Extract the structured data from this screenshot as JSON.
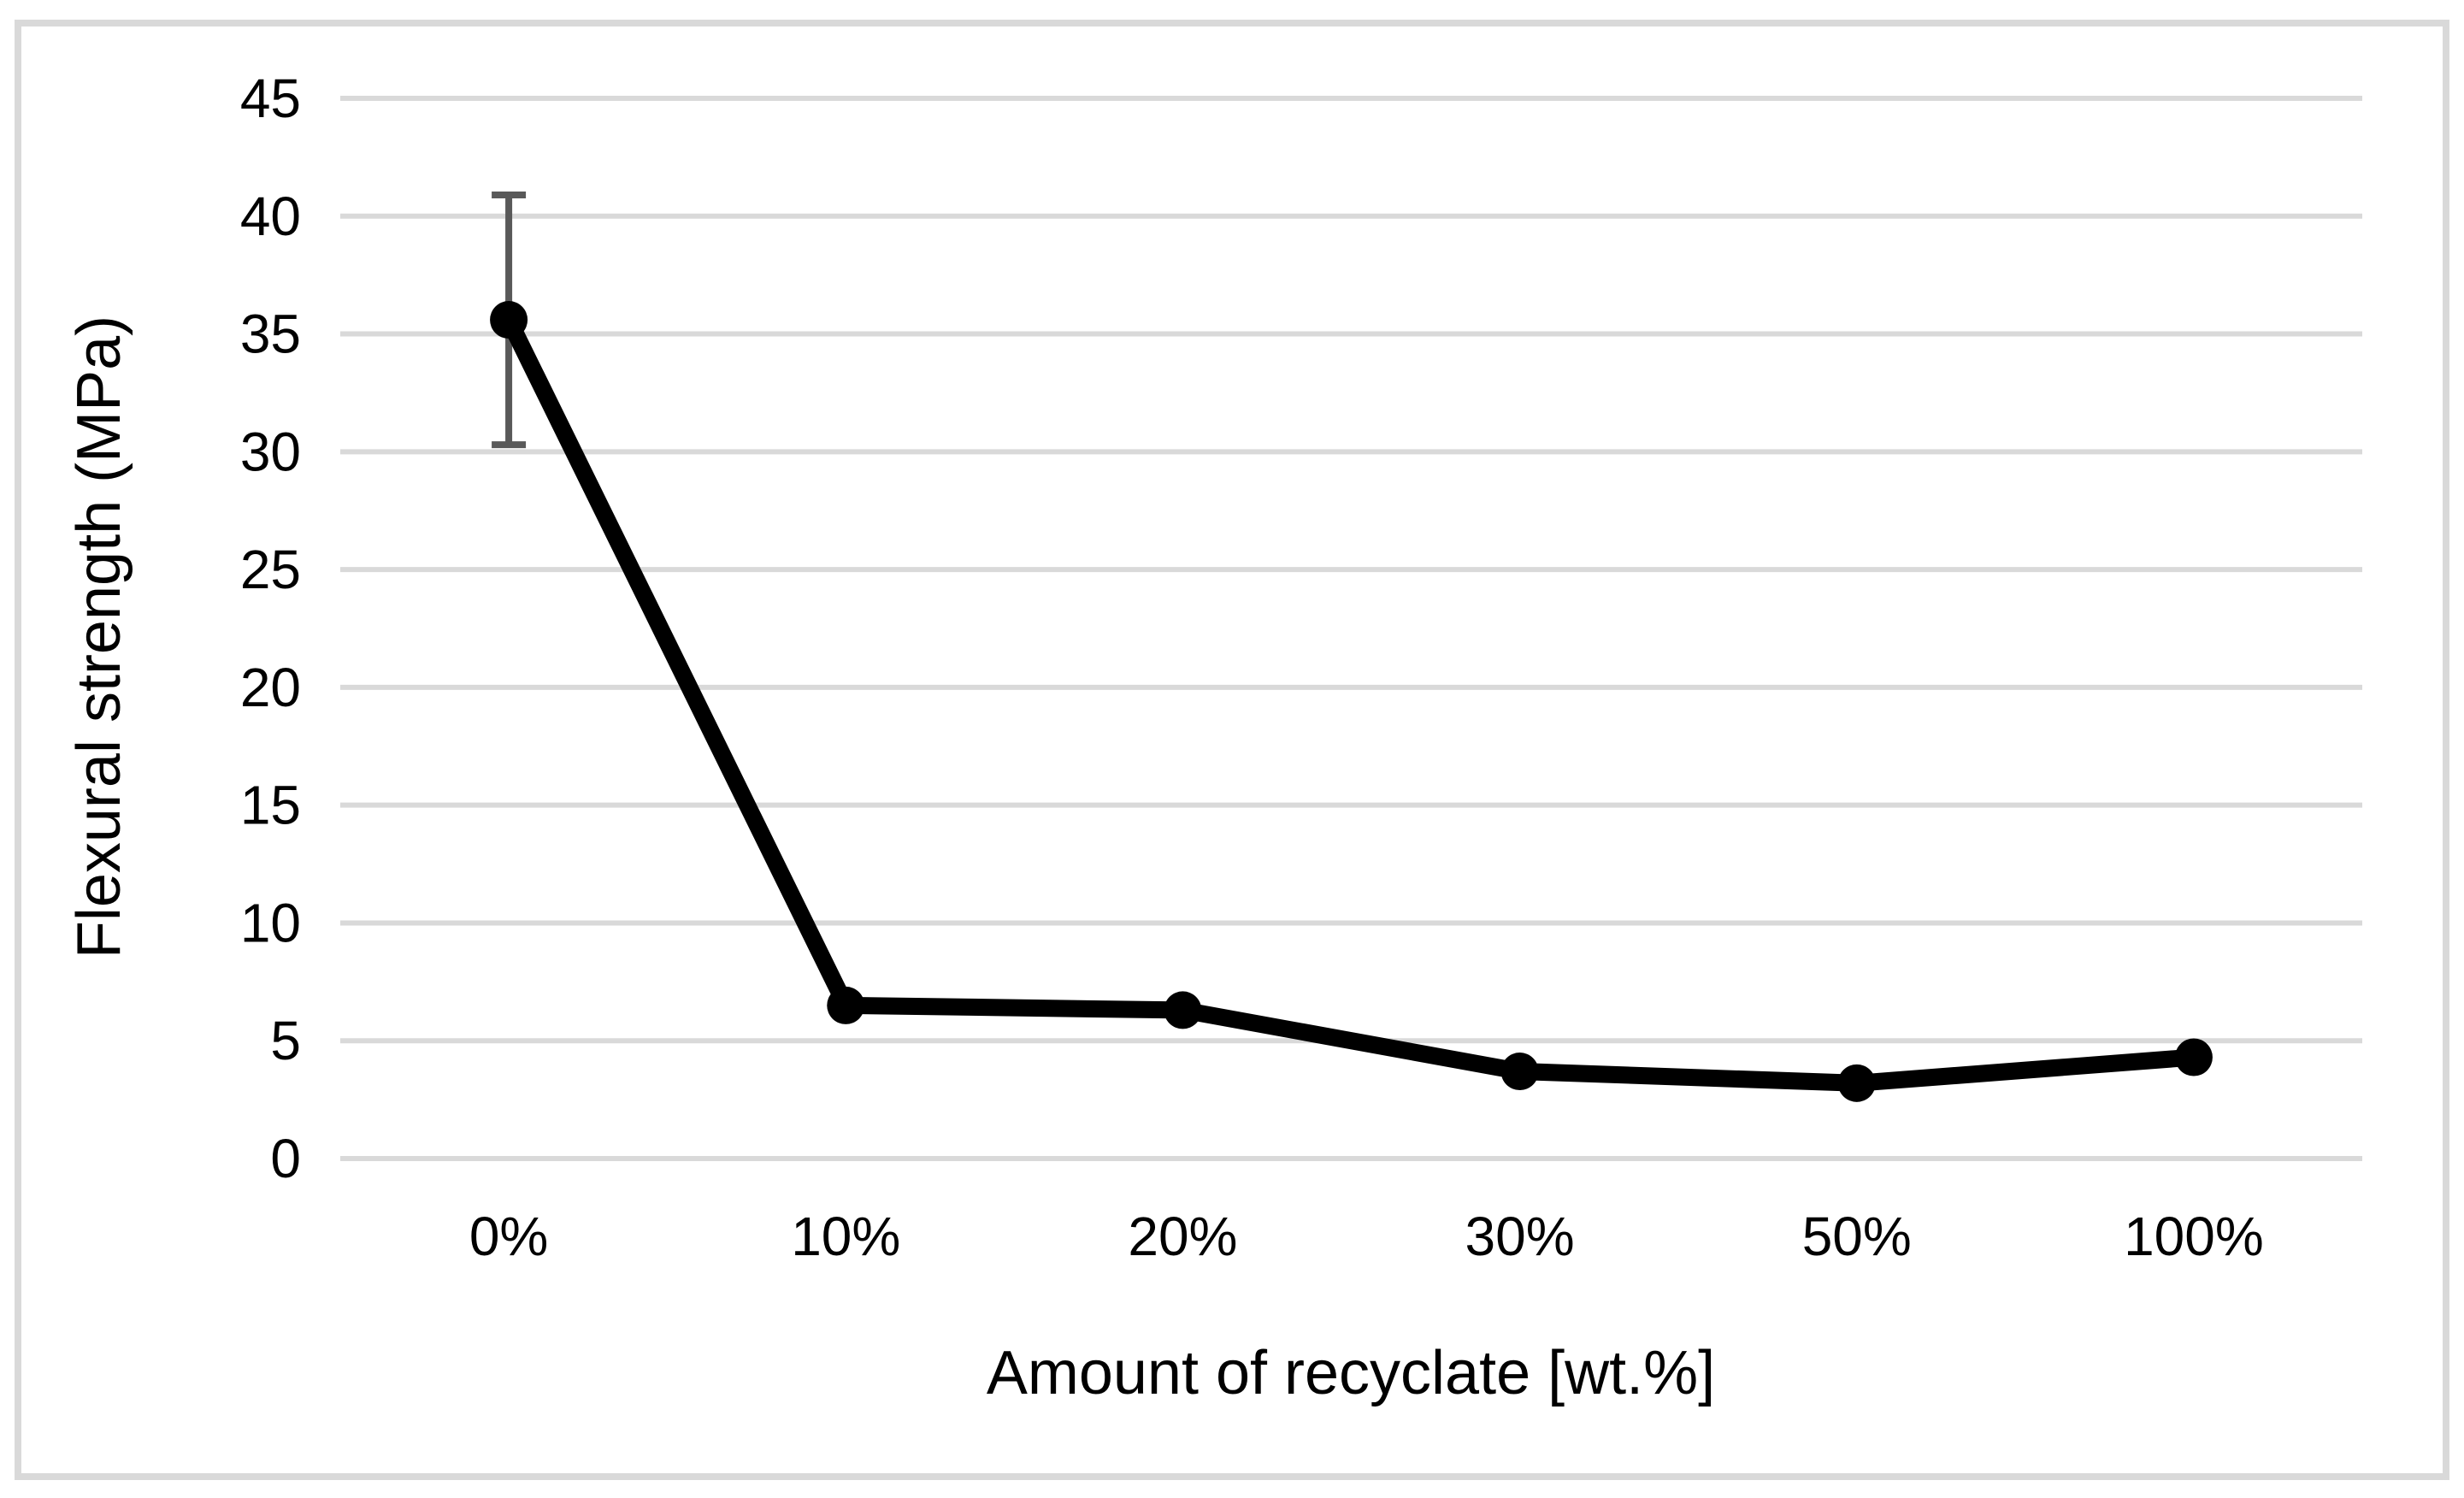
{
  "chart_data": {
    "type": "line",
    "title": "",
    "xlabel": "Amount of recyclate [wt.%]",
    "ylabel": "Flexural strength (MPa)",
    "categories": [
      "0%",
      "10%",
      "20%",
      "30%",
      "50%",
      "100%"
    ],
    "series": [
      {
        "name": "Flexural strength",
        "values": [
          35.6,
          6.5,
          6.3,
          3.7,
          3.2,
          4.3
        ]
      }
    ],
    "error_bars": [
      {
        "category": "0%",
        "upper": 40.9,
        "lower": 30.3
      }
    ],
    "ylim": [
      0,
      45
    ],
    "ytick_interval": 5,
    "yticks": [
      0,
      5,
      10,
      15,
      20,
      25,
      30,
      35,
      40,
      45
    ],
    "grid": "horizontal",
    "legend": "none",
    "colors": {
      "line": "#000000",
      "marker": "#000000",
      "error_bar": "#595959",
      "gridline": "#d9d9d9",
      "figure_border": "#d9d9d9",
      "text": "#000000"
    }
  }
}
